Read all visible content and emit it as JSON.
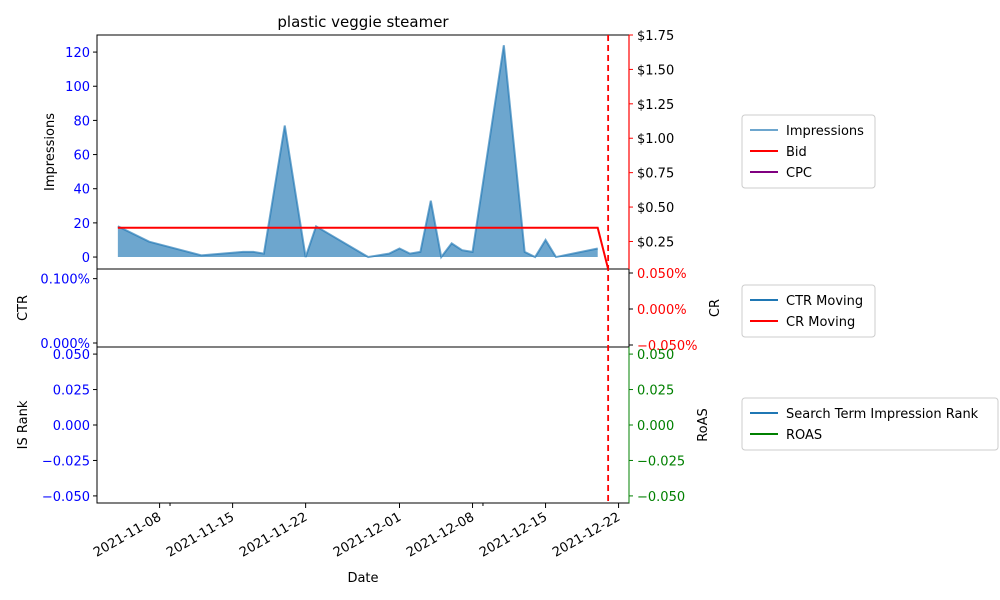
{
  "chart_data": [
    {
      "type": "area",
      "title": "plastic veggie steamer",
      "xlabel": "Date",
      "ylabel": "Impressions",
      "ylabel_right": "",
      "ylim": [
        -7,
        130
      ],
      "ylim_right": [
        0.05,
        1.75
      ],
      "x_range": [
        "2021-11-02",
        "2021-12-23"
      ],
      "x_ticks": [
        "2021-11-08",
        "2021-11-15",
        "2021-11-22",
        "2021-12-01",
        "2021-12-08",
        "2021-12-15",
        "2021-12-22"
      ],
      "y_ticks": [
        "0",
        "20",
        "40",
        "60",
        "80",
        "100",
        "120"
      ],
      "y_ticks_right": [
        "$0.25",
        "$0.50",
        "$0.75",
        "$1.00",
        "$1.25",
        "$1.50",
        "$1.75"
      ],
      "marker_line_date": "2021-12-21",
      "series": [
        {
          "name": "Impressions",
          "axis": "left",
          "x": [
            "2021-11-04",
            "2021-11-07",
            "2021-11-12",
            "2021-11-16",
            "2021-11-17",
            "2021-11-18",
            "2021-11-20",
            "2021-11-22",
            "2021-11-23",
            "2021-11-28",
            "2021-11-30",
            "2021-12-01",
            "2021-12-02",
            "2021-12-03",
            "2021-12-04",
            "2021-12-05",
            "2021-12-06",
            "2021-12-07",
            "2021-12-08",
            "2021-12-11",
            "2021-12-13",
            "2021-12-14",
            "2021-12-15",
            "2021-12-16",
            "2021-12-20"
          ],
          "values": [
            18,
            9,
            1,
            3,
            3,
            2,
            77,
            0,
            18,
            0,
            2,
            5,
            2,
            3,
            33,
            0,
            8,
            4,
            3,
            124,
            3,
            0,
            10,
            0,
            5
          ]
        },
        {
          "name": "Bid",
          "axis": "right",
          "x": [
            "2021-11-04",
            "2021-12-20",
            "2021-12-21"
          ],
          "values": [
            0.35,
            0.35,
            0.05
          ]
        },
        {
          "name": "CPC",
          "axis": "right",
          "x": [],
          "values": []
        }
      ],
      "legend": [
        "Impressions",
        "Bid",
        "CPC"
      ],
      "legend_placement": "right"
    },
    {
      "type": "line",
      "ylabel": "CTR",
      "ylabel_right": "CR",
      "y_ticks": [
        "0.000%",
        "0.100%"
      ],
      "y_ticks_right": [
        "−0.050%",
        "0.000%",
        "0.050%"
      ],
      "series": [
        {
          "name": "CTR Moving",
          "values": []
        },
        {
          "name": "CR Moving",
          "values": []
        }
      ],
      "legend": [
        "CTR Moving",
        "CR Moving"
      ],
      "legend_placement": "right"
    },
    {
      "type": "line",
      "ylabel": "IS Rank",
      "ylabel_right": "RoAS",
      "y_ticks": [
        "−0.050",
        "−0.025",
        "0.000",
        "0.025",
        "0.050"
      ],
      "y_ticks_right": [
        "−0.050",
        "−0.025",
        "0.000",
        "0.025",
        "0.050"
      ],
      "ylim": [
        -0.055,
        0.055
      ],
      "series": [
        {
          "name": "Search Term Impression Rank",
          "values": []
        },
        {
          "name": "ROAS",
          "values": []
        }
      ],
      "legend": [
        "Search Term Impression Rank",
        "ROAS"
      ],
      "legend_placement": "right"
    }
  ],
  "colors": {
    "impressions": "#1f77b4",
    "bid": "#ff0000",
    "cpc": "#800080",
    "ctr": "#1f77b4",
    "cr": "#ff0000",
    "is_rank": "#1f77b4",
    "roas": "#008000",
    "left_ticks": "#0000ff",
    "top_right_ticks": "#ff0000",
    "bottom_right_ticks": "#008000"
  }
}
